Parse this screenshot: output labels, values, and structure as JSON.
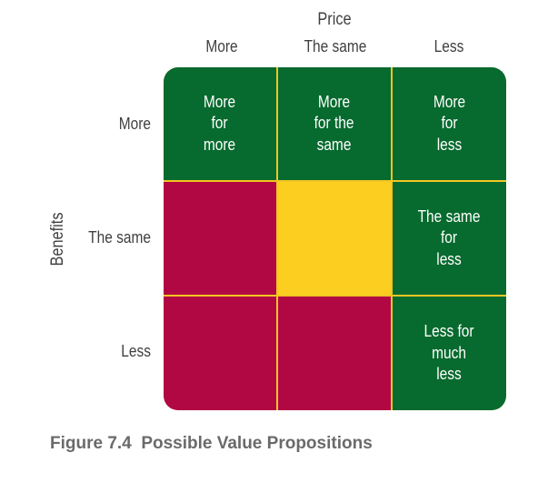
{
  "price": {
    "title": "Price",
    "columns": [
      "More",
      "The same",
      "Less"
    ]
  },
  "benefits": {
    "title": "Benefits",
    "rows": [
      "More",
      "The same",
      "Less"
    ]
  },
  "colors": {
    "green": "#076a2e",
    "magenta": "#b10843",
    "yellow": "#fcce20",
    "divider": "#f2c623"
  },
  "cells": [
    [
      {
        "color": "green",
        "text": "More\nfor\nmore"
      },
      {
        "color": "green",
        "text": "More\nfor the\nsame"
      },
      {
        "color": "green",
        "text": "More\nfor\nless"
      }
    ],
    [
      {
        "color": "magenta",
        "text": ""
      },
      {
        "color": "yellow",
        "text": ""
      },
      {
        "color": "green",
        "text": "The same\nfor\nless"
      }
    ],
    [
      {
        "color": "magenta",
        "text": ""
      },
      {
        "color": "magenta",
        "text": ""
      },
      {
        "color": "green",
        "text": "Less for\nmuch\nless"
      }
    ]
  ],
  "caption": {
    "number": "Figure 7.4",
    "title": "Possible Value Propositions"
  }
}
